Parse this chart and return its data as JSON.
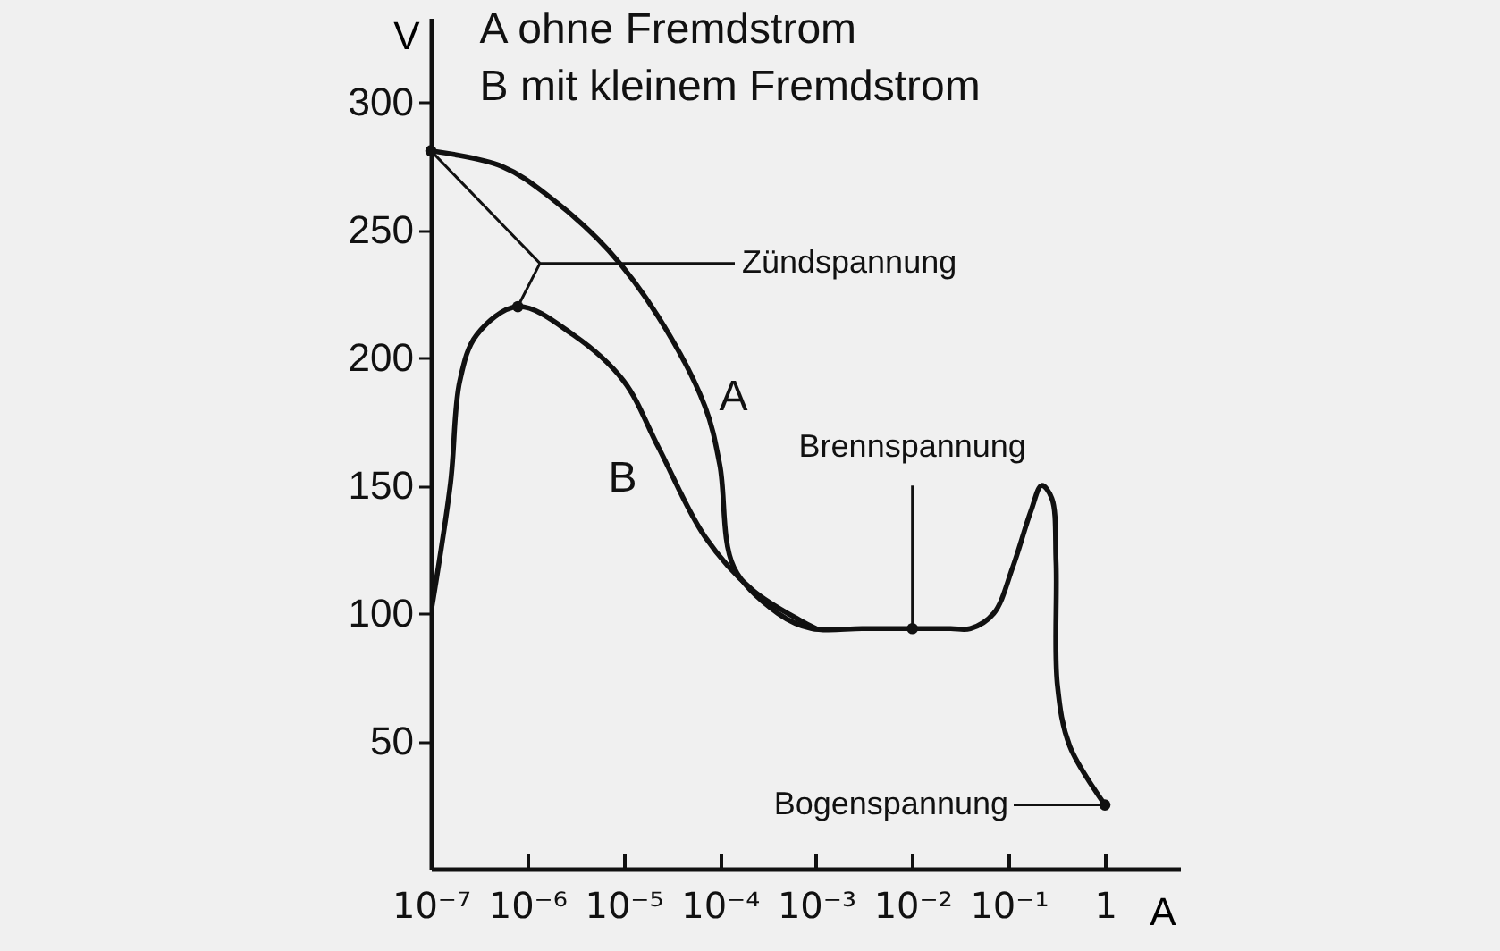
{
  "chart_data": {
    "type": "line",
    "title": "A ohne Fremdstrom",
    "subtitle": "B mit kleinem Fremdstrom",
    "xlabel": "A",
    "ylabel": "V",
    "log": "x",
    "grid": false,
    "line_style": "solid",
    "xlim": [
      1e-07,
      6
    ],
    "ylim": [
      0,
      333
    ],
    "xticks": [
      {
        "value": 1e-07,
        "label": "10⁻⁷"
      },
      {
        "value": 1e-06,
        "label": "10⁻⁶"
      },
      {
        "value": 1e-05,
        "label": "10⁻⁵"
      },
      {
        "value": 0.0001,
        "label": "10⁻⁴"
      },
      {
        "value": 0.001,
        "label": "10⁻³"
      },
      {
        "value": 0.01,
        "label": "10⁻²"
      },
      {
        "value": 0.1,
        "label": "10⁻¹"
      },
      1
    ],
    "yticks": [
      50,
      100,
      150,
      200,
      250,
      300
    ],
    "series": [
      {
        "name": "A",
        "color": "#111111",
        "x": [
          1e-07,
          5.4e-07,
          1.7e-06,
          7e-06,
          2.3e-05,
          7e-05,
          0.0001,
          0.00014,
          0.0004,
          0.0009,
          0.003,
          0.01,
          0.025,
          0.04,
          0.07,
          0.11,
          0.17,
          0.22,
          0.28,
          0.31,
          0.32,
          0.43,
          1
        ],
        "values": [
          281,
          275,
          263,
          242,
          216,
          181,
          158,
          118,
          100,
          94,
          94,
          94,
          94,
          94,
          100,
          118,
          140,
          150,
          145,
          120,
          72,
          48,
          25
        ]
      },
      {
        "name": "B",
        "color": "#111111",
        "x": [
          1e-07,
          1.6e-07,
          2e-07,
          3e-07,
          8e-07,
          3e-06,
          1e-05,
          2.3e-05,
          7e-05,
          0.00022,
          0.0007,
          0.001
        ],
        "values": [
          100,
          151,
          191,
          209,
          220,
          209,
          191,
          165,
          130,
          109,
          97,
          94
        ]
      }
    ],
    "annotations": [
      {
        "text": "Zündspannung",
        "x": 1e-07,
        "y": 281
      },
      {
        "text": "Brennspannung",
        "x": 0.01,
        "y": 94
      },
      "Bogenspannung"
    ]
  }
}
